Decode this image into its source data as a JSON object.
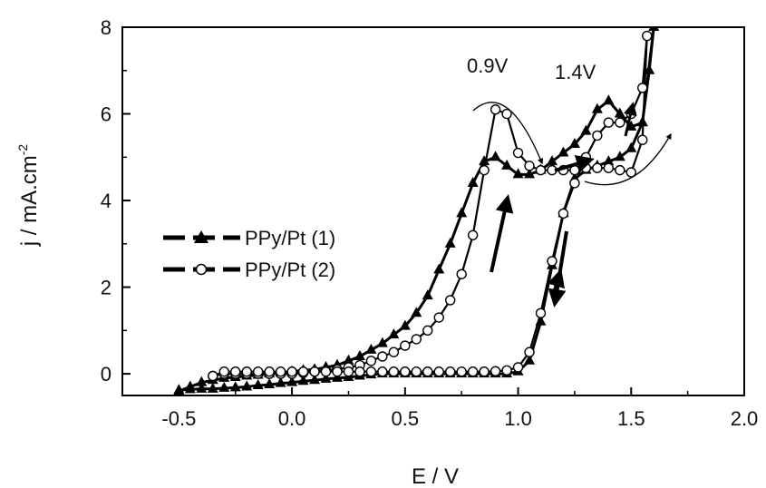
{
  "chart_data": {
    "type": "line",
    "xlabel": "E / V",
    "ylabel": "j / mA.cm",
    "ylabel_superscript": "-2",
    "xlim": [
      -0.75,
      2.0
    ],
    "ylim": [
      -0.5,
      8.0
    ],
    "xticks": [
      -0.5,
      0.0,
      0.5,
      1.0,
      1.5,
      2.0
    ],
    "xtick_labels": [
      "-0.5",
      "0.0",
      "0.5",
      "1.0",
      "1.5",
      "2.0"
    ],
    "yticks": [
      0,
      2,
      4,
      6,
      8
    ],
    "ytick_labels": [
      "0",
      "2",
      "4",
      "6",
      "8"
    ],
    "grid": false,
    "legend_position": "center-left",
    "annotations": [
      "0.9V",
      "1.4V"
    ],
    "series": [
      {
        "name": "PPy/Pt (1)",
        "marker": "filled-triangle",
        "color": "#000000",
        "x": [
          -0.5,
          -0.45,
          -0.4,
          -0.35,
          -0.3,
          -0.25,
          -0.2,
          -0.15,
          -0.1,
          -0.05,
          0.0,
          0.05,
          0.1,
          0.15,
          0.2,
          0.25,
          0.3,
          0.35,
          0.4,
          0.45,
          0.5,
          0.55,
          0.6,
          0.65,
          0.7,
          0.75,
          0.8,
          0.85,
          0.9,
          0.95,
          1.0,
          1.05,
          1.1,
          1.15,
          1.2,
          1.25,
          1.3,
          1.35,
          1.4,
          1.45,
          1.5,
          1.55,
          1.6,
          1.58,
          1.55,
          1.5,
          1.45,
          1.4,
          1.35,
          1.3,
          1.25,
          1.2,
          1.15,
          1.1,
          1.05,
          1.0,
          0.95,
          0.9,
          0.85,
          0.8,
          0.75,
          0.7,
          0.65,
          0.6,
          0.55,
          0.5,
          0.45,
          0.4,
          0.35,
          0.3,
          0.25,
          0.2,
          0.15,
          0.1,
          0.05,
          0.0,
          -0.05,
          -0.1,
          -0.15,
          -0.2,
          -0.25,
          -0.3,
          -0.35,
          -0.4,
          -0.45,
          -0.5
        ],
        "y": [
          -0.4,
          -0.3,
          -0.2,
          -0.15,
          -0.1,
          -0.08,
          -0.05,
          -0.03,
          0.0,
          0.02,
          0.05,
          0.08,
          0.1,
          0.15,
          0.2,
          0.3,
          0.4,
          0.55,
          0.7,
          0.9,
          1.1,
          1.4,
          1.8,
          2.4,
          3.0,
          3.7,
          4.4,
          4.9,
          5.0,
          4.8,
          4.6,
          4.6,
          4.7,
          4.9,
          5.1,
          5.3,
          5.6,
          6.1,
          6.3,
          6.0,
          5.7,
          5.8,
          8.0,
          7.0,
          5.8,
          5.2,
          5.0,
          4.9,
          4.8,
          4.7,
          4.5,
          3.7,
          2.5,
          1.2,
          0.3,
          0.05,
          0.0,
          0.0,
          0.0,
          0.0,
          0.0,
          0.0,
          0.0,
          0.0,
          0.0,
          0.0,
          0.0,
          0.0,
          -0.02,
          -0.05,
          -0.08,
          -0.1,
          -0.12,
          -0.15,
          -0.17,
          -0.2,
          -0.22,
          -0.25,
          -0.27,
          -0.3,
          -0.32,
          -0.33,
          -0.35,
          -0.35,
          -0.36,
          -0.38
        ]
      },
      {
        "name": "PPy/Pt (2)",
        "marker": "open-circle",
        "color": "#000000",
        "x": [
          -0.35,
          -0.3,
          -0.25,
          -0.2,
          -0.15,
          -0.1,
          -0.05,
          0.0,
          0.05,
          0.1,
          0.15,
          0.2,
          0.25,
          0.3,
          0.35,
          0.4,
          0.45,
          0.5,
          0.55,
          0.6,
          0.65,
          0.7,
          0.75,
          0.8,
          0.85,
          0.9,
          0.95,
          1.0,
          1.05,
          1.1,
          1.15,
          1.2,
          1.25,
          1.3,
          1.35,
          1.4,
          1.45,
          1.5,
          1.55,
          1.57,
          1.55,
          1.5,
          1.45,
          1.4,
          1.35,
          1.3,
          1.25,
          1.2,
          1.15,
          1.1,
          1.05,
          1.0,
          0.95,
          0.9,
          0.85,
          0.8,
          0.75,
          0.7,
          0.65,
          0.6,
          0.55,
          0.5,
          0.45,
          0.4,
          0.35,
          0.3,
          0.25,
          0.2,
          0.15,
          0.1,
          0.05,
          0.0,
          -0.05,
          -0.1,
          -0.15,
          -0.2,
          -0.25,
          -0.3,
          -0.35
        ],
        "y": [
          -0.05,
          0.0,
          0.0,
          0.0,
          0.0,
          0.0,
          0.0,
          0.0,
          0.02,
          0.05,
          0.08,
          0.1,
          0.15,
          0.2,
          0.3,
          0.4,
          0.5,
          0.65,
          0.8,
          1.0,
          1.3,
          1.7,
          2.3,
          3.2,
          4.7,
          6.1,
          6.0,
          5.1,
          4.8,
          4.7,
          4.7,
          4.7,
          4.7,
          4.75,
          4.75,
          4.75,
          4.7,
          4.65,
          5.4,
          7.8,
          6.6,
          6.0,
          5.8,
          5.8,
          5.5,
          5.0,
          4.4,
          3.7,
          2.6,
          1.4,
          0.5,
          0.15,
          0.08,
          0.06,
          0.05,
          0.05,
          0.05,
          0.05,
          0.05,
          0.05,
          0.05,
          0.05,
          0.05,
          0.05,
          0.05,
          0.05,
          0.05,
          0.05,
          0.05,
          0.05,
          0.05,
          0.05,
          0.05,
          0.05,
          0.05,
          0.05,
          0.05,
          0.05,
          -0.05
        ]
      }
    ]
  }
}
